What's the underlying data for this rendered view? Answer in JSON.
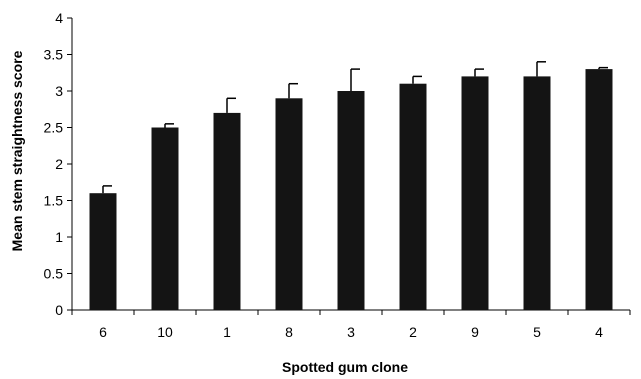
{
  "chart_data": {
    "type": "bar",
    "xlabel": "Spotted gum clone",
    "ylabel": "Mean stem straightness score",
    "categories": [
      "6",
      "10",
      "1",
      "8",
      "3",
      "2",
      "9",
      "5",
      "4"
    ],
    "series": [
      {
        "values": [
          1.6,
          2.5,
          2.7,
          2.9,
          3.0,
          3.1,
          3.2,
          3.2,
          3.3
        ],
        "error": [
          0.1,
          0.05,
          0.2,
          0.2,
          0.3,
          0.1,
          0.1,
          0.2,
          0.02
        ]
      }
    ],
    "ylim": [
      0,
      4
    ],
    "yticks": [
      "0",
      "0.5",
      "1",
      "1.5",
      "2",
      "2.5",
      "3",
      "3.5",
      "4"
    ],
    "grid": false,
    "bar_color": "#141414"
  }
}
